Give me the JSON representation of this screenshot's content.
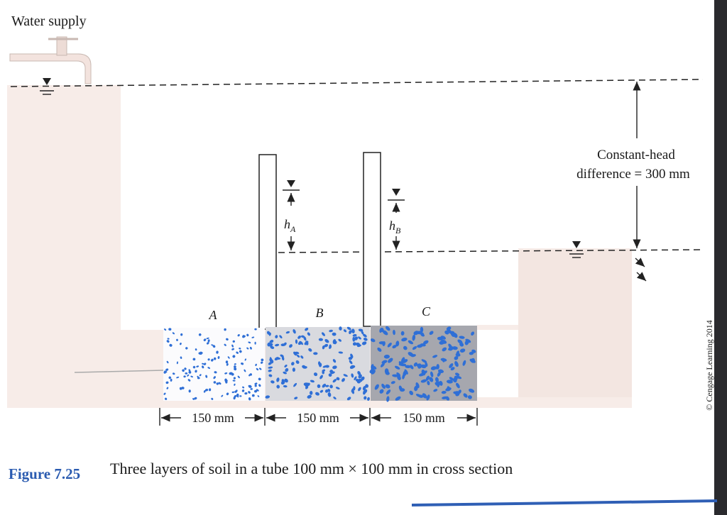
{
  "header": {
    "title": "Water supply"
  },
  "annotations": {
    "head_line1": "Constant-head",
    "head_line2": "difference = 300 mm",
    "h_a": {
      "symbol": "h",
      "subscript": "A"
    },
    "h_b": {
      "symbol": "h",
      "subscript": "B"
    },
    "copyright": "© Cengage Learning 2014"
  },
  "layers": [
    {
      "label": "A",
      "length": "150 mm"
    },
    {
      "label": "B",
      "length": "150 mm"
    },
    {
      "label": "C",
      "length": "150 mm"
    }
  ],
  "caption": {
    "number": "Figure 7.25",
    "text": "Three layers of soil in a tube 100 mm × 100 mm in cross section"
  }
}
